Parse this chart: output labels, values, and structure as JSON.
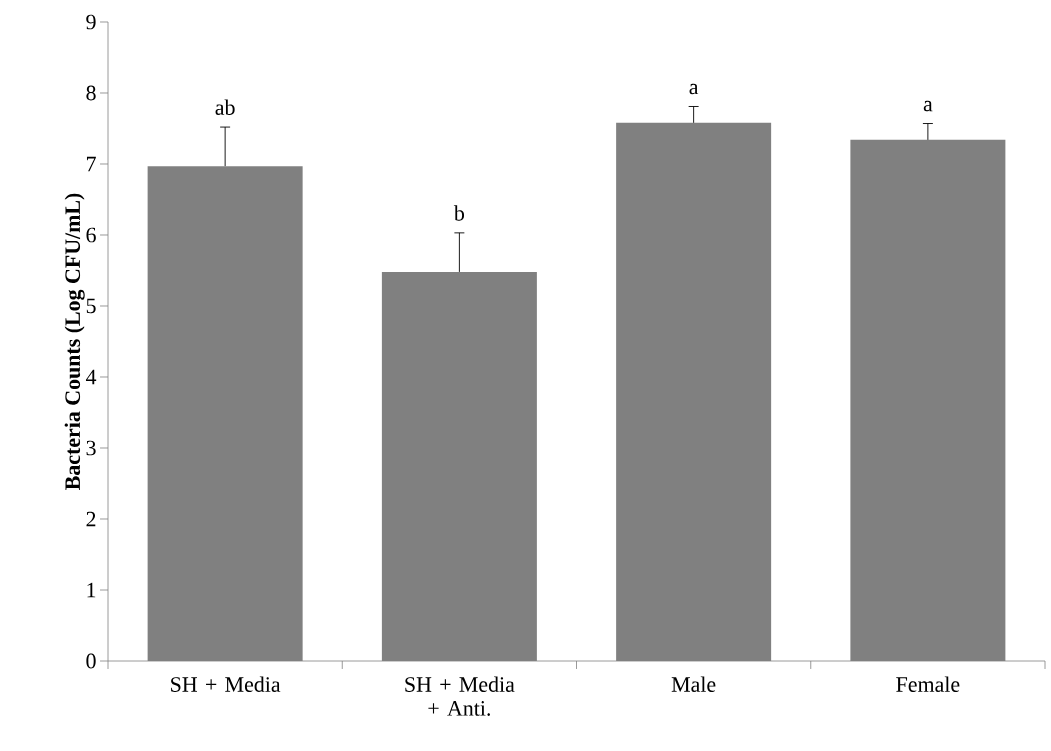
{
  "chart_data": {
    "type": "bar",
    "ylabel": "Bacteria Counts (Log CFU/mL)",
    "categories": [
      "SH + Media",
      "SH + Media + Anti.",
      "Male",
      "Female"
    ],
    "values": [
      6.97,
      5.48,
      7.58,
      7.34
    ],
    "errors": [
      0.55,
      0.55,
      0.23,
      0.23
    ],
    "color": "#808080",
    "ylim": [
      0,
      9
    ],
    "yticks": [
      0,
      1,
      2,
      3,
      4,
      5,
      6,
      7,
      8,
      9
    ],
    "grid": false,
    "annotations": [
      {
        "text": "ab",
        "x": "SH + Media",
        "y": 7.52
      },
      {
        "text": "b",
        "x": "SH + Media + Anti.",
        "y": 6.03
      },
      {
        "text": "a",
        "x": "Male",
        "y": 7.81
      },
      {
        "text": "a",
        "x": "Female",
        "y": 7.57
      }
    ]
  }
}
